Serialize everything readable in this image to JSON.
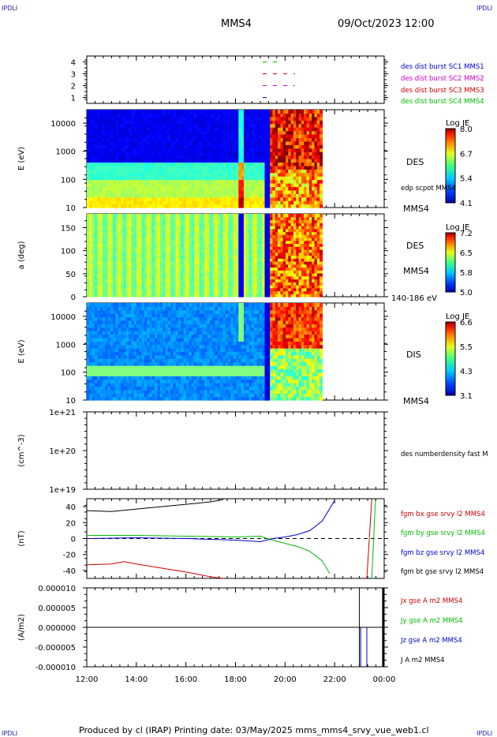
{
  "header": {
    "corner_tl": "IPDLI",
    "corner_tr": "IPDLI",
    "corner_bl": "IPDLI",
    "corner_br": "IPDLI",
    "spacecraft": "MMS4",
    "date": "09/Oct/2023 12:00"
  },
  "footer": {
    "text": "Produced by cl (IRAP)   Printing date: 03/May/2025   mms_mms4_srvy_vue_web1.cl"
  },
  "chart_data": [
    {
      "type": "line",
      "name": "panel-availability",
      "ylabel": "",
      "yticks": [
        "1",
        "2",
        "3",
        "4"
      ],
      "ylim": [
        0.5,
        4.5
      ],
      "legend": [
        "des dist burst SC1 MMS1",
        "des dist burst SC2 MMS2",
        "des dist burst SC3 MMS3",
        "des dist burst SC4 MMS4"
      ],
      "legend_colors": [
        "#0000cc",
        "#cc00cc",
        "#cc0000",
        "#00bb00"
      ],
      "segments_hours": [
        {
          "sc": 4,
          "x": [
            19.1,
            19.8
          ]
        },
        {
          "sc": 3,
          "x": [
            19.1,
            20.4
          ]
        },
        {
          "sc": 2,
          "x": [
            19.1,
            20.4
          ]
        },
        {
          "sc": 1,
          "x": [
            19.1,
            19.5
          ]
        }
      ]
    },
    {
      "type": "heatmap",
      "name": "des-energy-spectrogram",
      "ylabel": "E (eV)",
      "yscale": "log",
      "yticks": [
        "10",
        "100",
        "1000",
        "10000"
      ],
      "ylim": [
        10,
        30000
      ],
      "instrument": "DES",
      "extra_label": "edp scpot MMS4",
      "mms_label": "MMS4",
      "colorbar": {
        "title": "Log JE",
        "ticks": [
          "8.0",
          "6.7",
          "5.4",
          "4.1"
        ]
      }
    },
    {
      "type": "heatmap",
      "name": "des-pitch-angle",
      "ylabel": "a (deg)",
      "yticks": [
        "0",
        "50",
        "100",
        "150"
      ],
      "ylim": [
        0,
        180
      ],
      "instrument": "DES",
      "mms_label": "MMS4",
      "energy_range": "140-186 eV",
      "colorbar": {
        "title": "Log JE",
        "ticks": [
          "7.2",
          "6.5",
          "5.8",
          "5.0"
        ]
      }
    },
    {
      "type": "heatmap",
      "name": "dis-energy-spectrogram",
      "ylabel": "E (eV)",
      "yscale": "log",
      "yticks": [
        "10",
        "100",
        "1000",
        "10000"
      ],
      "ylim": [
        10,
        30000
      ],
      "instrument": "DIS",
      "mms_label": "MMS4",
      "colorbar": {
        "title": "Log JE",
        "ticks": [
          "6.6",
          "5.5",
          "4.3",
          "3.1"
        ]
      }
    },
    {
      "type": "line",
      "name": "density",
      "ylabel": "(cm^-3)",
      "yscale": "log",
      "yticks": [
        "1e+19",
        "1e+20",
        "1e+21"
      ],
      "ylim": [
        1e+19,
        1e+21
      ],
      "legend": [
        "des numberdensity fast M"
      ],
      "legend_colors": [
        "#000000"
      ]
    },
    {
      "type": "line",
      "name": "magnetic-field",
      "ylabel": "(nT)",
      "yticks": [
        "-40",
        "-20",
        "0",
        "20",
        "40"
      ],
      "ylim": [
        -50,
        50
      ],
      "legend": [
        "fgm bx gse srvy l2 MMS4",
        "fgm by gse srvy l2 MMS4",
        "fgm bz gse srvy l2 MMS4",
        "fgm bt gse srvy l2 MMS4"
      ],
      "legend_colors": [
        "#cc0000",
        "#00bb00",
        "#0000cc",
        "#000000"
      ],
      "series": [
        {
          "name": "bt",
          "x": [
            12.0,
            13.0,
            14.0,
            15.0,
            16.0,
            17.0,
            17.5
          ],
          "y": [
            35,
            34,
            37,
            40,
            43,
            46,
            49
          ]
        },
        {
          "name": "bx",
          "x": [
            12.0,
            13.0,
            13.5,
            14.0,
            15.0,
            16.0,
            17.0,
            17.5
          ],
          "y": [
            -33,
            -32,
            -29,
            -32,
            -37,
            -42,
            -48,
            -52
          ]
        },
        {
          "name": "by",
          "x": [
            12.0,
            14.0,
            16.0,
            18.0,
            19.0,
            19.5,
            20.0,
            20.5,
            21.0,
            21.5,
            21.8
          ],
          "y": [
            4,
            4,
            3,
            2,
            3,
            -2,
            -6,
            -10,
            -16,
            -28,
            -44
          ]
        },
        {
          "name": "bz",
          "x": [
            12.0,
            14.0,
            16.0,
            18.0,
            19.0,
            19.5,
            20.0,
            20.5,
            21.0,
            21.5,
            22.0
          ],
          "y": [
            0,
            1,
            0,
            -2,
            -4,
            0,
            2,
            5,
            10,
            22,
            48
          ]
        }
      ]
    },
    {
      "type": "line",
      "name": "current-density",
      "ylabel": "(A/m2)",
      "yticks": [
        "-0.000010",
        "-0.000005",
        "0.000000",
        "0.000005",
        "0.000010"
      ],
      "ylim": [
        -1e-05,
        1e-05
      ],
      "legend": [
        "Jx gse A m2 MMS4",
        "Jy gse A m2 MMS4",
        "Jz gse A m2 MMS4",
        "J A m2 MMS4"
      ],
      "legend_colors": [
        "#cc0000",
        "#00bb00",
        "#0000cc",
        "#000000"
      ]
    }
  ],
  "x_axis": {
    "ticks": [
      "12:00",
      "14:00",
      "16:00",
      "18:00",
      "20:00",
      "22:00",
      "00:00"
    ],
    "range_hours": [
      12,
      24
    ]
  }
}
